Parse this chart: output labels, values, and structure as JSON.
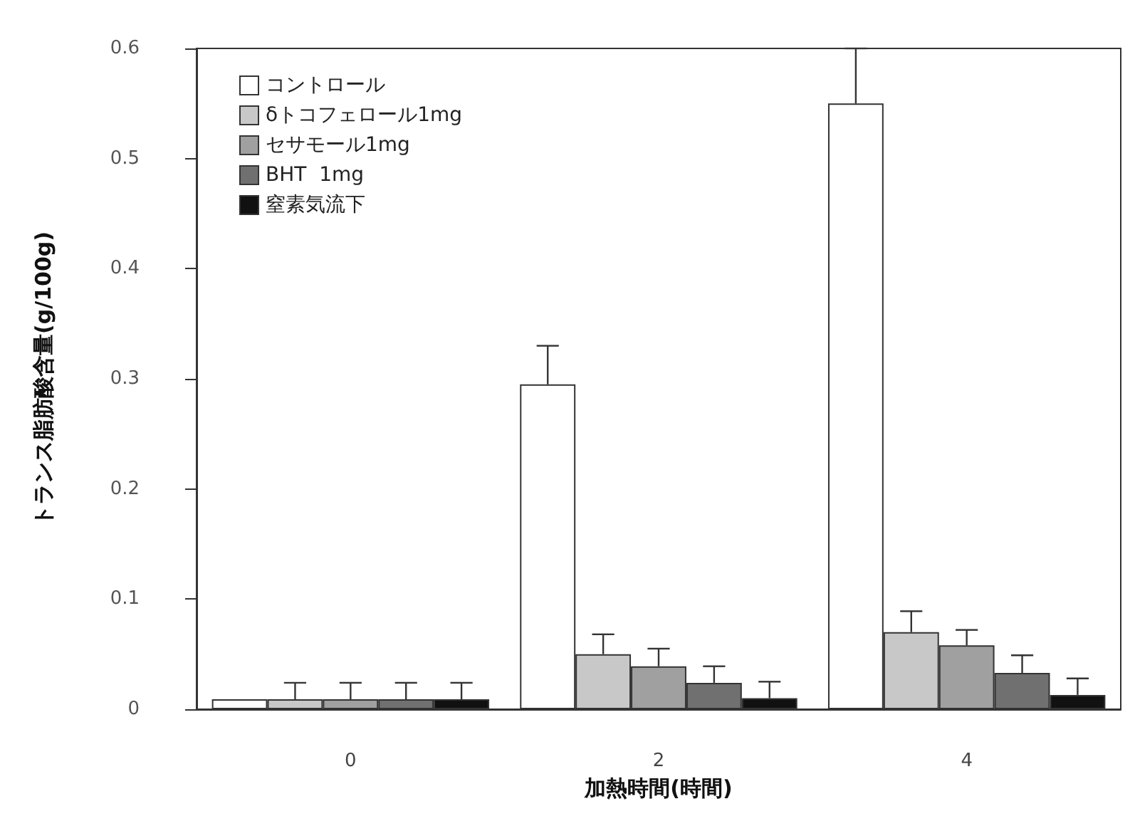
{
  "chart_data": {
    "type": "bar",
    "xlabel": "加熱時間(時間)",
    "ylabel": "トランス脂肪酸含量(g/100g)",
    "categories": [
      "0",
      "2",
      "4"
    ],
    "ylim": [
      0,
      0.6
    ],
    "yticks": [
      {
        "value": 0,
        "label": "0"
      },
      0.1,
      0.2,
      0.3,
      0.4,
      0.5,
      0.6
    ],
    "grid": false,
    "legend": "top left",
    "series": [
      {
        "name": "コントロール",
        "color": "#ffffff",
        "values": [
          0.009,
          0.295,
          0.55
        ],
        "errors": [
          null,
          [
            0.295,
            0.33
          ],
          [
            0.55,
            0.6
          ]
        ]
      },
      {
        "name": "δトコフェロール1mg",
        "color": "#c8c8c8",
        "values": [
          0.009,
          0.05,
          0.07
        ],
        "errors": [
          [
            0.009,
            0.024
          ],
          [
            0.05,
            0.068
          ],
          [
            0.07,
            0.089
          ]
        ]
      },
      {
        "name": "セサモール1mg",
        "color": "#a0a0a0",
        "values": [
          0.009,
          0.039,
          0.058
        ],
        "errors": [
          [
            0.009,
            0.024
          ],
          [
            0.039,
            0.055
          ],
          [
            0.058,
            0.072
          ]
        ]
      },
      {
        "name": "BHT  1mg",
        "color": "#707070",
        "values": [
          0.009,
          0.024,
          0.033
        ],
        "errors": [
          [
            0.009,
            0.024
          ],
          [
            0.024,
            0.039
          ],
          [
            0.033,
            0.049
          ]
        ]
      },
      {
        "name": "窒素気流下",
        "color": "#111111",
        "values": [
          0.009,
          0.01,
          0.013
        ],
        "errors": [
          [
            0.009,
            0.024
          ],
          [
            0.01,
            0.025
          ],
          [
            0.013,
            0.028
          ]
        ]
      }
    ]
  }
}
